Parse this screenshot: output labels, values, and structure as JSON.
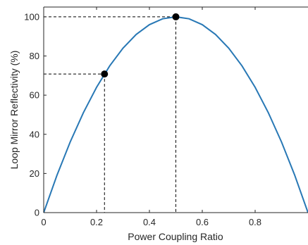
{
  "chart_data": {
    "type": "line",
    "title": "",
    "xlabel": "Power Coupling Ratio",
    "ylabel": "Loop Mirror Reflectivity (%)",
    "xlim": [
      0,
      1
    ],
    "ylim": [
      0,
      105
    ],
    "x_ticks": [
      "0",
      "0.2",
      "0.4",
      "0.6",
      "0.8"
    ],
    "x_tick_values": [
      0,
      0.2,
      0.4,
      0.6,
      0.8
    ],
    "y_ticks": [
      "0",
      "20",
      "40",
      "60",
      "80",
      "100"
    ],
    "y_tick_values": [
      0,
      20,
      40,
      60,
      80,
      100
    ],
    "grid": false,
    "series": [
      {
        "x": [
          0,
          0.05,
          0.1,
          0.15,
          0.2,
          0.25,
          0.3,
          0.35,
          0.4,
          0.45,
          0.5,
          0.55,
          0.6,
          0.65,
          0.7,
          0.75,
          0.8,
          0.85,
          0.9,
          0.95,
          1.0
        ],
        "y": [
          0,
          19,
          36,
          51,
          64,
          75,
          84,
          91,
          96,
          99,
          100,
          99,
          96,
          91,
          84,
          75,
          64,
          51,
          36,
          19,
          0
        ],
        "color": "#2878b5"
      }
    ],
    "highlight_points": [
      {
        "x": 0.23,
        "y": 70.8
      },
      {
        "x": 0.5,
        "y": 100
      }
    ]
  }
}
